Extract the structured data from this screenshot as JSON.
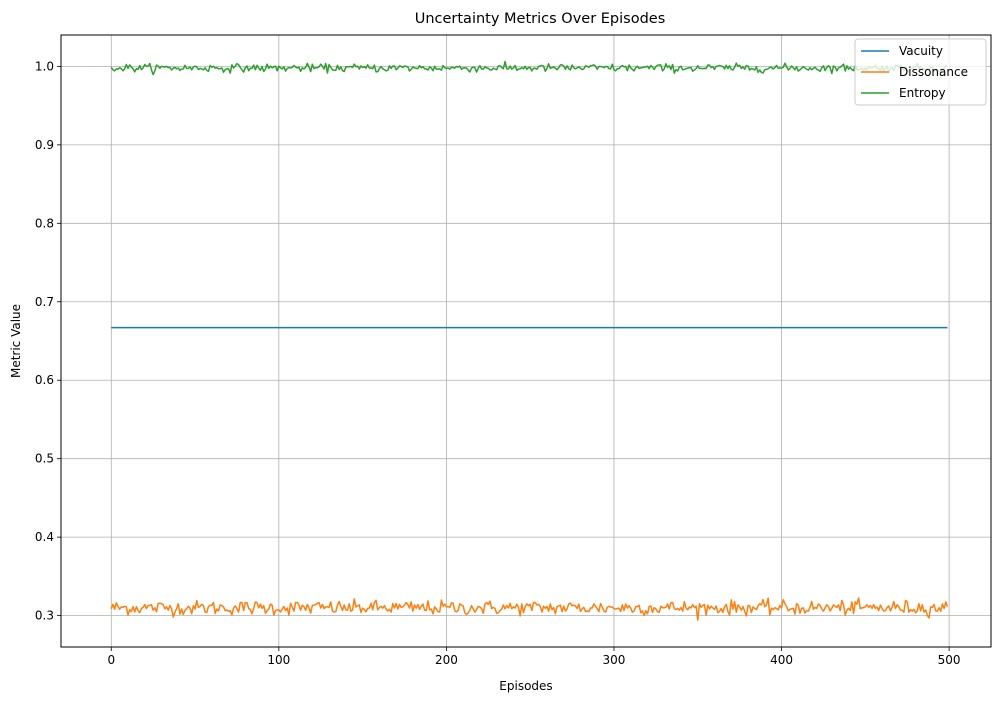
{
  "chart_data": {
    "type": "line",
    "title": "Uncertainty Metrics Over Episodes",
    "xlabel": "Episodes",
    "ylabel": "Metric Value",
    "xlim": [
      -30,
      525
    ],
    "ylim": [
      0.26,
      1.04
    ],
    "xticks": [
      0,
      100,
      200,
      300,
      400,
      500
    ],
    "yticks": [
      0.3,
      0.4,
      0.5,
      0.6,
      0.7,
      0.8,
      0.9,
      1.0
    ],
    "grid": true,
    "legend_position": "top-right",
    "x_range": [
      0,
      499
    ],
    "series": [
      {
        "name": "Vacuity",
        "color": "#1f77b4",
        "mean": 0.667,
        "noise": 0.0
      },
      {
        "name": "Dissonance",
        "color": "#ff7f0e",
        "mean": 0.31,
        "noise": 0.0045
      },
      {
        "name": "Entropy",
        "color": "#2ca02c",
        "mean": 0.998,
        "noise": 0.0025
      }
    ]
  }
}
